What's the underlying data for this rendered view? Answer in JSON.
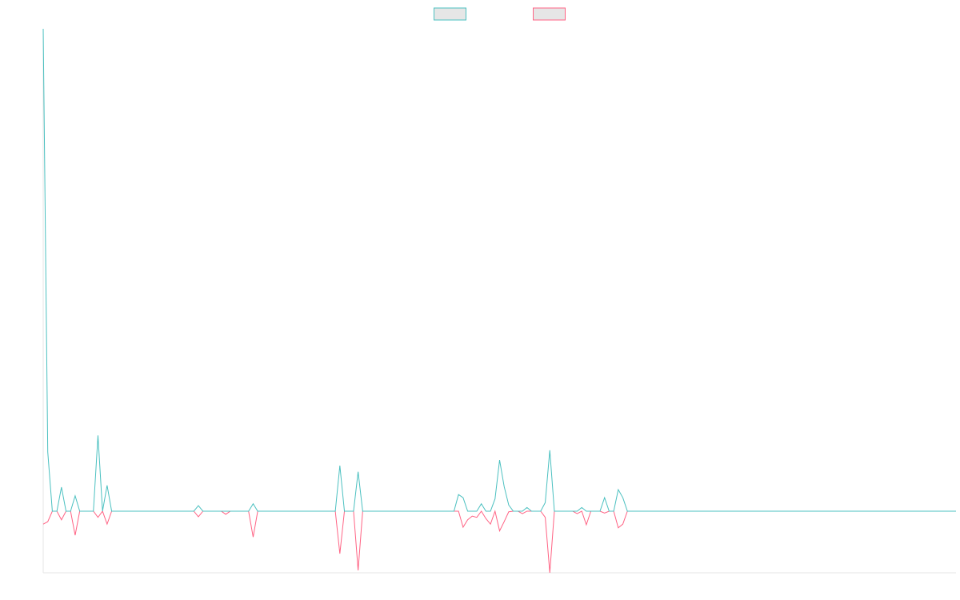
{
  "chart_data": {
    "type": "line",
    "ylim": [
      -1,
      7.83
    ],
    "legend": "top",
    "series": [
      {
        "color": "#4bc0c0",
        "fill": "#e6e6e6",
        "values": [
          7.83,
          0.96,
          0,
          0,
          0.39,
          0,
          0,
          0.25,
          0,
          0,
          0,
          0,
          1.23,
          0,
          0.42,
          0,
          0,
          0,
          0,
          0,
          0,
          0,
          0,
          0,
          0,
          0,
          0,
          0,
          0,
          0,
          0,
          0,
          0,
          0,
          0.09,
          0,
          0,
          0,
          0,
          0,
          0,
          0,
          0,
          0,
          0,
          0,
          0.12,
          0,
          0,
          0,
          0,
          0,
          0,
          0,
          0,
          0,
          0,
          0,
          0,
          0,
          0,
          0,
          0,
          0,
          0,
          0.74,
          0,
          0,
          0,
          0.64,
          0,
          0,
          0,
          0,
          0,
          0,
          0,
          0,
          0,
          0,
          0,
          0,
          0,
          0,
          0,
          0,
          0,
          0,
          0,
          0,
          0,
          0.27,
          0.22,
          0,
          0,
          0,
          0.12,
          0,
          0,
          0.2,
          0.83,
          0.4,
          0.1,
          0,
          0,
          0,
          0.06,
          0,
          0,
          0,
          0.14,
          0.99,
          0,
          0,
          0,
          0,
          0,
          0,
          0.06,
          0,
          0,
          0,
          0,
          0.22,
          0,
          0,
          0.35,
          0.22,
          0,
          0,
          0,
          0,
          0,
          0,
          0,
          0,
          0,
          0,
          0,
          0,
          0,
          0,
          0,
          0,
          0,
          0,
          0,
          0,
          0,
          0,
          0,
          0,
          0,
          0,
          0,
          0,
          0,
          0,
          0,
          0,
          0,
          0,
          0,
          0,
          0,
          0,
          0,
          0,
          0,
          0,
          0,
          0,
          0,
          0,
          0,
          0,
          0,
          0,
          0,
          0,
          0,
          0,
          0,
          0,
          0,
          0,
          0,
          0,
          0,
          0,
          0,
          0,
          0,
          0,
          0,
          0,
          0,
          0,
          0,
          0,
          0
        ]
      },
      {
        "color": "#ff6384",
        "fill": "#e6e6e6",
        "values": [
          -0.21,
          -0.17,
          0,
          0,
          -0.14,
          0,
          0,
          -0.39,
          0,
          0,
          0,
          0,
          -0.1,
          0,
          -0.21,
          0,
          0,
          0,
          0,
          0,
          0,
          0,
          0,
          0,
          0,
          0,
          0,
          0,
          0,
          0,
          0,
          0,
          0,
          0,
          -0.09,
          0,
          0,
          0,
          0,
          0,
          -0.05,
          0,
          0,
          0,
          0,
          0,
          -0.42,
          0,
          0,
          0,
          0,
          0,
          0,
          0,
          0,
          0,
          0,
          0,
          0,
          0,
          0,
          0,
          0,
          0,
          0,
          -0.69,
          0,
          0,
          0,
          -0.96,
          0,
          0,
          0,
          0,
          0,
          0,
          0,
          0,
          0,
          0,
          0,
          0,
          0,
          0,
          0,
          0,
          0,
          0,
          0,
          0,
          0,
          0,
          -0.26,
          -0.14,
          -0.08,
          -0.1,
          0,
          -0.12,
          -0.21,
          0,
          -0.32,
          -0.17,
          -0.01,
          0,
          0,
          -0.04,
          0,
          0,
          0,
          0,
          -0.1,
          -1.0,
          0,
          0,
          0,
          0,
          0,
          -0.04,
          0,
          -0.22,
          0,
          0,
          0,
          -0.03,
          0,
          0,
          -0.27,
          -0.21,
          0,
          0,
          0,
          0,
          0,
          0,
          0,
          0,
          0,
          0,
          0,
          0,
          0,
          0,
          0,
          0,
          0,
          0,
          0,
          0,
          0,
          0,
          0,
          0,
          0,
          0,
          0,
          0,
          0,
          0,
          0,
          0,
          0,
          0,
          0,
          0,
          0,
          0,
          0,
          0,
          0,
          0,
          0,
          0,
          0,
          0,
          0,
          0,
          0,
          0,
          0,
          0,
          0,
          0,
          0,
          0,
          0,
          0,
          0,
          0,
          0,
          0,
          0,
          0,
          0,
          0,
          0,
          0,
          0,
          0,
          0,
          0,
          0
        ]
      }
    ]
  }
}
